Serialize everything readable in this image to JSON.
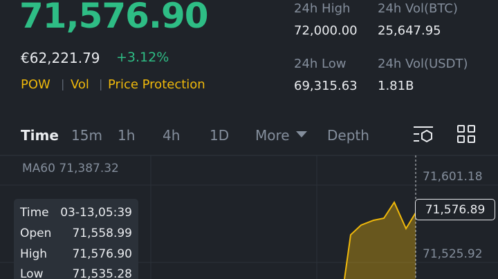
{
  "header": {
    "price": "71,576.90",
    "fiat_price": "€62,221.79",
    "change": "+3.12%",
    "tags": [
      "POW",
      "Vol",
      "Price Protection"
    ]
  },
  "stats": [
    {
      "label": "24h High",
      "value": "72,000.00"
    },
    {
      "label": "24h Vol(BTC)",
      "value": "25,647.95"
    },
    {
      "label": "24h Low",
      "value": "69,315.63"
    },
    {
      "label": "24h Vol(USDT)",
      "value": "1.81B"
    }
  ],
  "tabs": [
    "Time",
    "15m",
    "1h",
    "4h",
    "1D",
    "More",
    "Depth"
  ],
  "chart": {
    "ma": {
      "label": "MA60",
      "value": "71,387.32"
    },
    "price_axis": [
      "71,601.18",
      "71,525.92"
    ],
    "current_price": "71,576.89"
  },
  "tooltip": [
    {
      "label": "Time",
      "value": "03-13,05:39"
    },
    {
      "label": "Open",
      "value": "71,558.99"
    },
    {
      "label": "High",
      "value": "71,576.90"
    },
    {
      "label": "Low",
      "value": "71,535.28"
    }
  ]
}
